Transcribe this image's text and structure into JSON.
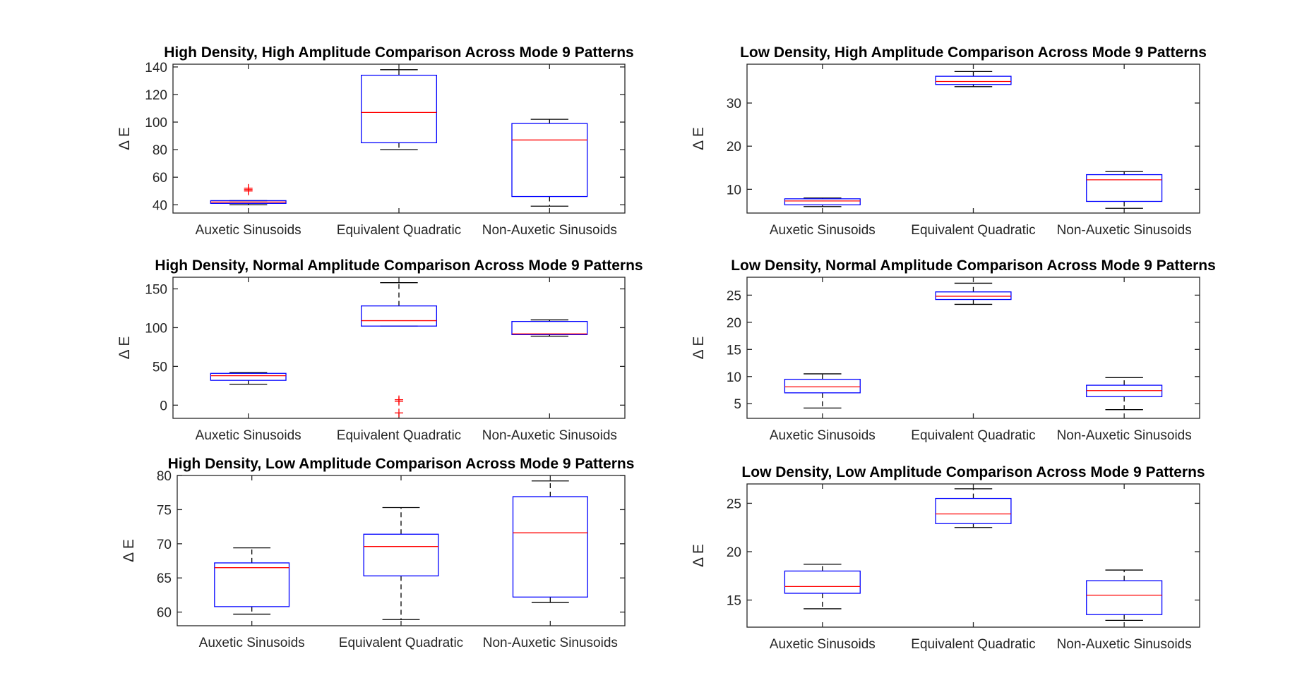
{
  "figure": {
    "background": "#ffffff"
  },
  "colors": {
    "box": "#0000ff",
    "median": "#ff0000",
    "whisker": "#000000",
    "outlier": "#ff0000",
    "axis": "#262626"
  },
  "chart_data": [
    {
      "type": "box",
      "title": "High Density, High Amplitude Comparison Across Mode 9 Patterns",
      "ylabel": "Δ E",
      "ylim": [
        34,
        142
      ],
      "yticks": [
        40,
        60,
        80,
        100,
        120,
        140
      ],
      "categories": [
        "Auxetic Sinusoids",
        "Equivalent Quadratic",
        "Non-Auxetic Sinusoids"
      ],
      "boxes": [
        {
          "lower_whisker": 40,
          "q1": 41,
          "median": 42,
          "q3": 43,
          "upper_whisker": 43,
          "outliers": [
            50,
            51,
            52
          ]
        },
        {
          "lower_whisker": 80,
          "q1": 85,
          "median": 107,
          "q3": 134,
          "upper_whisker": 138,
          "outliers": []
        },
        {
          "lower_whisker": 39,
          "q1": 46,
          "median": 87,
          "q3": 99,
          "upper_whisker": 102,
          "outliers": []
        }
      ]
    },
    {
      "type": "box",
      "title": "Low Density, High Amplitude Comparison Across Mode 9 Patterns",
      "ylabel": "Δ E",
      "ylim": [
        4.5,
        39
      ],
      "yticks": [
        10,
        20,
        30
      ],
      "categories": [
        "Auxetic Sinusoids",
        "Equivalent Quadratic",
        "Non-Auxetic Sinusoids"
      ],
      "boxes": [
        {
          "lower_whisker": 6,
          "q1": 6.4,
          "median": 7.3,
          "q3": 7.8,
          "upper_whisker": 8,
          "outliers": []
        },
        {
          "lower_whisker": 33.8,
          "q1": 34.3,
          "median": 35,
          "q3": 36.2,
          "upper_whisker": 37.3,
          "outliers": []
        },
        {
          "lower_whisker": 5.6,
          "q1": 7.2,
          "median": 12.2,
          "q3": 13.4,
          "upper_whisker": 14.1,
          "outliers": []
        }
      ]
    },
    {
      "type": "box",
      "title": "High Density, Normal Amplitude Comparison Across Mode 9 Patterns",
      "ylabel": "Δ E",
      "ylim": [
        -17,
        165
      ],
      "yticks": [
        0,
        50,
        100,
        150
      ],
      "categories": [
        "Auxetic Sinusoids",
        "Equivalent Quadratic",
        "Non-Auxetic Sinusoids"
      ],
      "boxes": [
        {
          "lower_whisker": 27,
          "q1": 32,
          "median": 38,
          "q3": 41,
          "upper_whisker": 42,
          "outliers": []
        },
        {
          "lower_whisker": 102,
          "q1": 102,
          "median": 109,
          "q3": 128,
          "upper_whisker": 158,
          "outliers": [
            -10,
            5,
            7
          ]
        },
        {
          "lower_whisker": 89,
          "q1": 91,
          "median": 92,
          "q3": 108,
          "upper_whisker": 110,
          "outliers": []
        }
      ]
    },
    {
      "type": "box",
      "title": "Low Density, Normal Amplitude Comparison Across Mode 9 Patterns",
      "ylabel": "Δ E",
      "ylim": [
        2.3,
        28.3
      ],
      "yticks": [
        5,
        10,
        15,
        20,
        25
      ],
      "categories": [
        "Auxetic Sinusoids",
        "Equivalent Quadratic",
        "Non-Auxetic Sinusoids"
      ],
      "boxes": [
        {
          "lower_whisker": 4.2,
          "q1": 7,
          "median": 8.1,
          "q3": 9.5,
          "upper_whisker": 10.5,
          "outliers": []
        },
        {
          "lower_whisker": 23.3,
          "q1": 24.2,
          "median": 24.8,
          "q3": 25.6,
          "upper_whisker": 27.2,
          "outliers": []
        },
        {
          "lower_whisker": 3.9,
          "q1": 6.3,
          "median": 7.4,
          "q3": 8.4,
          "upper_whisker": 9.8,
          "outliers": []
        }
      ]
    },
    {
      "type": "box",
      "title": "High Density, Low Amplitude Comparison Across Mode 9 Patterns",
      "ylabel": "Δ E",
      "ylim": [
        58,
        80
      ],
      "yticks": [
        60,
        65,
        70,
        75,
        80
      ],
      "categories": [
        "Auxetic Sinusoids",
        "Equivalent Quadratic",
        "Non-Auxetic Sinusoids"
      ],
      "boxes": [
        {
          "lower_whisker": 59.7,
          "q1": 60.8,
          "median": 66.5,
          "q3": 67.2,
          "upper_whisker": 69.4,
          "outliers": []
        },
        {
          "lower_whisker": 58.9,
          "q1": 65.3,
          "median": 69.6,
          "q3": 71.4,
          "upper_whisker": 75.3,
          "outliers": []
        },
        {
          "lower_whisker": 61.4,
          "q1": 62.2,
          "median": 71.6,
          "q3": 76.9,
          "upper_whisker": 79.2,
          "outliers": []
        }
      ]
    },
    {
      "type": "box",
      "title": "Low Density, Low Amplitude Comparison Across Mode 9 Patterns",
      "ylabel": "Δ E",
      "ylim": [
        12.2,
        27
      ],
      "yticks": [
        15,
        20,
        25
      ],
      "categories": [
        "Auxetic Sinusoids",
        "Equivalent Quadratic",
        "Non-Auxetic Sinusoids"
      ],
      "boxes": [
        {
          "lower_whisker": 14.1,
          "q1": 15.7,
          "median": 16.4,
          "q3": 18,
          "upper_whisker": 18.7,
          "outliers": []
        },
        {
          "lower_whisker": 22.5,
          "q1": 22.9,
          "median": 23.9,
          "q3": 25.5,
          "upper_whisker": 26.5,
          "outliers": []
        },
        {
          "lower_whisker": 12.9,
          "q1": 13.5,
          "median": 15.5,
          "q3": 17,
          "upper_whisker": 18.1,
          "outliers": []
        }
      ]
    }
  ]
}
